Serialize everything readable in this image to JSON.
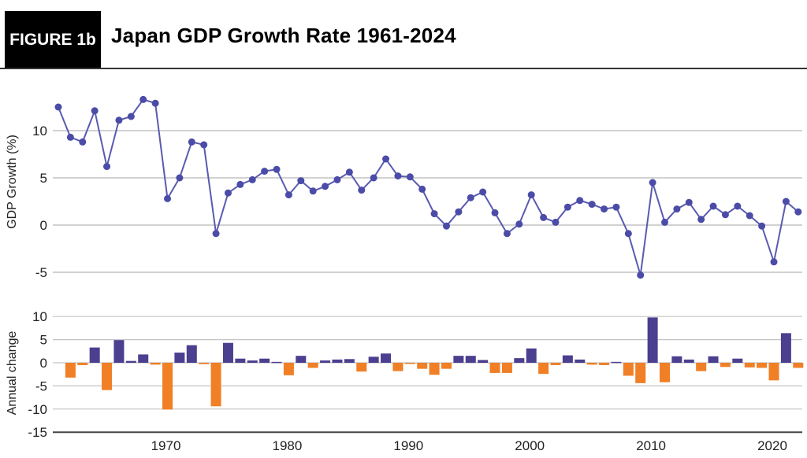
{
  "header": {
    "figure_label": "FIGURE 1b",
    "title": "Japan GDP Growth Rate 1961-2024"
  },
  "chart_data": [
    {
      "type": "line",
      "ylabel": "GDP Growth (%)",
      "xlabel": "",
      "ylim": [
        -5.5,
        13.5
      ],
      "yticks": [
        "10",
        "5",
        "0",
        "-5"
      ],
      "ytick_values": [
        10,
        5,
        0,
        -5
      ],
      "grid": true,
      "color": "#4b4ba8",
      "x": [
        1961,
        1962,
        1963,
        1964,
        1965,
        1966,
        1967,
        1968,
        1969,
        1970,
        1971,
        1972,
        1973,
        1974,
        1975,
        1976,
        1977,
        1978,
        1979,
        1980,
        1981,
        1982,
        1983,
        1984,
        1985,
        1986,
        1987,
        1988,
        1989,
        1990,
        1991,
        1992,
        1993,
        1994,
        1995,
        1996,
        1997,
        1998,
        1999,
        2000,
        2001,
        2002,
        2003,
        2004,
        2005,
        2006,
        2007,
        2008,
        2009,
        2010,
        2011,
        2012,
        2013,
        2014,
        2015,
        2016,
        2017,
        2018,
        2019,
        2020,
        2021,
        2022
      ],
      "y": [
        12.5,
        9.3,
        8.8,
        12.1,
        6.2,
        11.1,
        11.5,
        13.3,
        12.9,
        2.8,
        5.0,
        8.8,
        8.5,
        -0.9,
        3.4,
        4.3,
        4.8,
        5.7,
        5.9,
        3.2,
        4.7,
        3.6,
        4.1,
        4.8,
        5.6,
        3.7,
        5.0,
        7.0,
        5.2,
        5.1,
        3.8,
        1.2,
        -0.1,
        1.4,
        2.9,
        3.5,
        1.3,
        -0.9,
        0.1,
        3.2,
        0.8,
        0.3,
        1.9,
        2.6,
        2.2,
        1.7,
        1.9,
        -0.9,
        -5.3,
        4.5,
        0.3,
        1.7,
        2.4,
        0.6,
        2.0,
        1.1,
        2.0,
        1.0,
        -0.1,
        -3.9,
        2.5,
        1.4
      ]
    },
    {
      "type": "bar",
      "ylabel": "Annual change",
      "xlabel": "",
      "ylim": [
        -15,
        10
      ],
      "yticks": [
        "10",
        "5",
        "0",
        "-5",
        "-10",
        "-15"
      ],
      "ytick_values": [
        10,
        5,
        0,
        -5,
        -10,
        -15
      ],
      "xticks": [
        "1970",
        "1980",
        "1990",
        "2000",
        "2010",
        "2020"
      ],
      "xtick_values": [
        1970,
        1980,
        1990,
        2000,
        2010,
        2020
      ],
      "grid": true,
      "positive_color": "#4b3f8f",
      "negative_color": "#f07f26",
      "x": [
        1962,
        1963,
        1964,
        1965,
        1966,
        1967,
        1968,
        1969,
        1970,
        1971,
        1972,
        1973,
        1974,
        1975,
        1976,
        1977,
        1978,
        1979,
        1980,
        1981,
        1982,
        1983,
        1984,
        1985,
        1986,
        1987,
        1988,
        1989,
        1990,
        1991,
        1992,
        1993,
        1994,
        1995,
        1996,
        1997,
        1998,
        1999,
        2000,
        2001,
        2002,
        2003,
        2004,
        2005,
        2006,
        2007,
        2008,
        2009,
        2010,
        2011,
        2012,
        2013,
        2014,
        2015,
        2016,
        2017,
        2018,
        2019,
        2020,
        2021,
        2022
      ],
      "values": [
        -3.2,
        -0.5,
        3.3,
        -5.9,
        4.9,
        0.4,
        1.8,
        -0.4,
        -10.1,
        2.2,
        3.8,
        -0.3,
        -9.4,
        4.3,
        0.9,
        0.5,
        0.9,
        0.2,
        -2.7,
        1.5,
        -1.1,
        0.5,
        0.7,
        0.8,
        -1.9,
        1.3,
        2.0,
        -1.8,
        -0.1,
        -1.3,
        -2.6,
        -1.3,
        1.5,
        1.5,
        0.6,
        -2.2,
        -2.2,
        1.0,
        3.1,
        -2.4,
        -0.5,
        1.6,
        0.7,
        -0.4,
        -0.5,
        0.2,
        -2.8,
        -4.4,
        9.8,
        -4.2,
        1.4,
        0.7,
        -1.8,
        1.4,
        -0.9,
        0.9,
        -1.0,
        -1.1,
        -3.8,
        6.4,
        -1.1
      ]
    }
  ]
}
